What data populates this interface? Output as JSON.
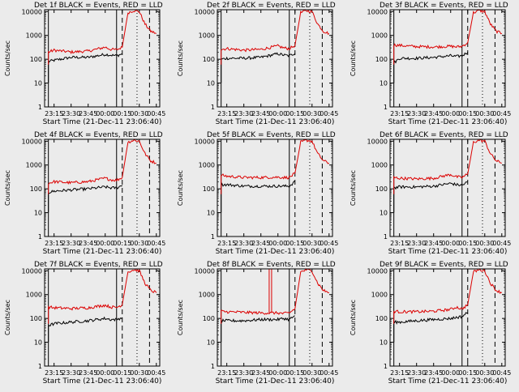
{
  "figure": {
    "background": "#ebebeb",
    "events_color": "#000000",
    "lld_color": "#dc0000",
    "panel_title_suffix": "BLACK = Events, RED = LLD",
    "ylabel": "Counts/sec",
    "xlabel": "Start Time (21-Dec-11 23:06:40)",
    "ytick_labels": [
      "1",
      "10",
      "100",
      "1000",
      "10000"
    ],
    "xtick_labels": [
      "23:15",
      "23:30",
      "23:45",
      "00:00",
      "00:15",
      "00:30",
      "00:45"
    ]
  },
  "chart_data": [
    {
      "type": "line",
      "title": "Det 1f BLACK = Events, RED = LLD",
      "detector": "1f",
      "xlabel": "Start Time (21-Dec-11 23:06:40)",
      "ylabel": "Counts/sec",
      "y_scale": "log",
      "ylim": [
        1,
        12000
      ],
      "xlim": [
        "23:06:40",
        "00:48:00"
      ],
      "x": [
        "23:10",
        "23:15",
        "23:30",
        "23:45",
        "00:00",
        "00:05",
        "00:10",
        "00:15",
        "00:20",
        "00:25",
        "00:30",
        "00:35",
        "00:40",
        "00:45"
      ],
      "series": [
        {
          "name": "Events",
          "values": [
            80,
            90,
            120,
            120,
            160,
            150,
            140,
            170,
            null,
            null,
            null,
            null,
            null,
            null
          ]
        },
        {
          "name": "LLD",
          "values": [
            200,
            240,
            200,
            220,
            320,
            260,
            250,
            320,
            9000,
            11000,
            10000,
            3000,
            1500,
            1200
          ]
        }
      ],
      "vlines": [
        {
          "x": "23:10",
          "style": "solid"
        },
        {
          "x": "00:10",
          "style": "solid"
        },
        {
          "x": "00:15",
          "style": "dashed"
        },
        {
          "x": "00:28",
          "style": "dotted"
        },
        {
          "x": "00:39",
          "style": "dashed"
        }
      ]
    },
    {
      "type": "line",
      "title": "Det 2f BLACK = Events, RED = LLD",
      "detector": "2f",
      "xlabel": "Start Time (21-Dec-11 23:06:40)",
      "ylabel": "Counts/sec",
      "y_scale": "log",
      "ylim": [
        1,
        12000
      ],
      "xlim": [
        "23:06:40",
        "00:48:00"
      ],
      "x": [
        "23:10",
        "23:15",
        "23:30",
        "23:45",
        "00:00",
        "00:05",
        "00:10",
        "00:15",
        "00:20",
        "00:25",
        "00:30",
        "00:35",
        "00:40",
        "00:45"
      ],
      "series": [
        {
          "name": "Events",
          "values": [
            100,
            110,
            110,
            120,
            170,
            150,
            140,
            180,
            null,
            null,
            null,
            null,
            null,
            null
          ]
        },
        {
          "name": "LLD",
          "values": [
            260,
            280,
            240,
            260,
            360,
            300,
            280,
            380,
            9000,
            11000,
            10000,
            3000,
            1500,
            1200
          ]
        }
      ],
      "vlines": [
        {
          "x": "23:10",
          "style": "solid"
        },
        {
          "x": "00:10",
          "style": "solid"
        },
        {
          "x": "00:15",
          "style": "dashed"
        },
        {
          "x": "00:28",
          "style": "dotted"
        },
        {
          "x": "00:39",
          "style": "dashed"
        }
      ]
    },
    {
      "type": "line",
      "title": "Det 3f BLACK = Events, RED = LLD",
      "detector": "3f",
      "xlabel": "Start Time (21-Dec-11 23:06:40)",
      "ylabel": "Counts/sec",
      "y_scale": "log",
      "ylim": [
        1,
        12000
      ],
      "xlim": [
        "23:06:40",
        "00:48:00"
      ],
      "x": [
        "23:10",
        "23:15",
        "23:30",
        "23:45",
        "00:00",
        "00:05",
        "00:10",
        "00:15",
        "00:20",
        "00:25",
        "00:30",
        "00:35",
        "00:40",
        "00:45"
      ],
      "series": [
        {
          "name": "Events",
          "values": [
            70,
            110,
            110,
            120,
            140,
            130,
            140,
            200,
            null,
            null,
            null,
            null,
            null,
            null
          ]
        },
        {
          "name": "LLD",
          "values": [
            400,
            380,
            340,
            330,
            350,
            330,
            350,
            500,
            9000,
            11000,
            10000,
            3000,
            1500,
            1200
          ]
        }
      ],
      "vlines": [
        {
          "x": "23:10",
          "style": "solid"
        },
        {
          "x": "00:10",
          "style": "solid"
        },
        {
          "x": "00:15",
          "style": "dashed"
        },
        {
          "x": "00:28",
          "style": "dotted"
        },
        {
          "x": "00:39",
          "style": "dashed"
        }
      ]
    },
    {
      "type": "line",
      "title": "Det 4f BLACK = Events, RED = LLD",
      "detector": "4f",
      "xlabel": "Start Time (21-Dec-11 23:06:40)",
      "ylabel": "Counts/sec",
      "y_scale": "log",
      "ylim": [
        1,
        12000
      ],
      "xlim": [
        "23:06:40",
        "00:48:00"
      ],
      "x": [
        "23:10",
        "23:15",
        "23:30",
        "23:45",
        "00:00",
        "00:05",
        "00:10",
        "00:15",
        "00:20",
        "00:25",
        "00:30",
        "00:35",
        "00:40",
        "00:45"
      ],
      "series": [
        {
          "name": "Events",
          "values": [
            70,
            80,
            90,
            100,
            120,
            110,
            110,
            140,
            null,
            null,
            null,
            null,
            null,
            null
          ]
        },
        {
          "name": "LLD",
          "values": [
            170,
            200,
            180,
            200,
            280,
            240,
            230,
            300,
            9000,
            11000,
            10000,
            3000,
            1500,
            1200
          ]
        }
      ],
      "vlines": [
        {
          "x": "23:10",
          "style": "solid"
        },
        {
          "x": "00:10",
          "style": "solid"
        },
        {
          "x": "00:15",
          "style": "dashed"
        },
        {
          "x": "00:28",
          "style": "dotted"
        },
        {
          "x": "00:39",
          "style": "dashed"
        }
      ]
    },
    {
      "type": "line",
      "title": "Det 5f BLACK = Events, RED = LLD",
      "detector": "5f",
      "xlabel": "Start Time (21-Dec-11 23:06:40)",
      "ylabel": "Counts/sec",
      "y_scale": "log",
      "ylim": [
        1,
        12000
      ],
      "xlim": [
        "23:06:40",
        "00:48:00"
      ],
      "x": [
        "23:10",
        "23:15",
        "23:30",
        "23:45",
        "00:00",
        "00:05",
        "00:10",
        "00:15",
        "00:20",
        "00:25",
        "00:30",
        "00:35",
        "00:40",
        "00:45"
      ],
      "series": [
        {
          "name": "Events",
          "values": [
            150,
            150,
            130,
            130,
            130,
            130,
            130,
            200,
            null,
            null,
            null,
            null,
            null,
            null
          ]
        },
        {
          "name": "LLD",
          "values": [
            380,
            340,
            300,
            300,
            310,
            300,
            300,
            450,
            9000,
            11000,
            10000,
            3000,
            1500,
            1200
          ]
        }
      ],
      "vlines": [
        {
          "x": "23:10",
          "style": "solid"
        },
        {
          "x": "00:10",
          "style": "solid"
        },
        {
          "x": "00:15",
          "style": "dashed"
        },
        {
          "x": "00:28",
          "style": "dotted"
        },
        {
          "x": "00:39",
          "style": "dashed"
        }
      ]
    },
    {
      "type": "line",
      "title": "Det 6f BLACK = Events, RED = LLD",
      "detector": "6f",
      "xlabel": "Start Time (21-Dec-11 23:06:40)",
      "ylabel": "Counts/sec",
      "y_scale": "log",
      "ylim": [
        1,
        12000
      ],
      "xlim": [
        "23:06:40",
        "00:48:00"
      ],
      "x": [
        "23:10",
        "23:15",
        "23:30",
        "23:45",
        "00:00",
        "00:05",
        "00:10",
        "00:15",
        "00:20",
        "00:25",
        "00:30",
        "00:35",
        "00:40",
        "00:45"
      ],
      "series": [
        {
          "name": "Events",
          "values": [
            110,
            120,
            120,
            130,
            170,
            150,
            140,
            200,
            null,
            null,
            null,
            null,
            null,
            null
          ]
        },
        {
          "name": "LLD",
          "values": [
            300,
            280,
            260,
            280,
            400,
            320,
            300,
            420,
            9000,
            11000,
            10000,
            3000,
            1500,
            1200
          ]
        }
      ],
      "vlines": [
        {
          "x": "23:10",
          "style": "solid"
        },
        {
          "x": "00:10",
          "style": "solid"
        },
        {
          "x": "00:15",
          "style": "dashed"
        },
        {
          "x": "00:28",
          "style": "dotted"
        },
        {
          "x": "00:39",
          "style": "dashed"
        }
      ]
    },
    {
      "type": "line",
      "title": "Det 7f BLACK = Events, RED = LLD",
      "detector": "7f",
      "xlabel": "Start Time (21-Dec-11 23:06:40)",
      "ylabel": "Counts/sec",
      "y_scale": "log",
      "ylim": [
        1,
        12000
      ],
      "xlim": [
        "23:06:40",
        "00:48:00"
      ],
      "x": [
        "23:10",
        "23:15",
        "23:30",
        "23:45",
        "00:00",
        "00:05",
        "00:10",
        "00:15",
        "00:20",
        "00:25",
        "00:30",
        "00:35",
        "00:40",
        "00:45"
      ],
      "series": [
        {
          "name": "Events",
          "values": [
            50,
            60,
            70,
            80,
            100,
            90,
            90,
            110,
            null,
            null,
            null,
            null,
            null,
            null
          ]
        },
        {
          "name": "LLD",
          "values": [
            300,
            280,
            260,
            280,
            360,
            300,
            290,
            380,
            9000,
            11000,
            10000,
            3000,
            1500,
            1200
          ]
        }
      ],
      "vlines": [
        {
          "x": "23:10",
          "style": "solid"
        },
        {
          "x": "00:10",
          "style": "solid"
        },
        {
          "x": "00:15",
          "style": "dashed"
        },
        {
          "x": "00:28",
          "style": "dotted"
        },
        {
          "x": "00:39",
          "style": "dashed"
        }
      ]
    },
    {
      "type": "line",
      "title": "Det 8f BLACK = Events, RED = LLD",
      "detector": "8f",
      "xlabel": "Start Time (21-Dec-11 23:06:40)",
      "ylabel": "Counts/sec",
      "y_scale": "log",
      "ylim": [
        1,
        12000
      ],
      "xlim": [
        "23:06:40",
        "00:48:00"
      ],
      "x": [
        "23:10",
        "23:15",
        "23:30",
        "23:45",
        "00:00",
        "00:05",
        "00:10",
        "00:15",
        "00:20",
        "00:25",
        "00:30",
        "00:35",
        "00:40",
        "00:45"
      ],
      "series": [
        {
          "name": "Events",
          "values": [
            80,
            80,
            80,
            90,
            90,
            100,
            90,
            130,
            null,
            null,
            null,
            null,
            null,
            null
          ]
        },
        {
          "name": "LLD",
          "values": [
            200,
            190,
            180,
            170,
            170,
            160,
            170,
            260,
            9000,
            11000,
            10000,
            3000,
            1500,
            1200
          ]
        }
      ],
      "spike": {
        "x": "23:53",
        "value": 12000
      },
      "vlines": [
        {
          "x": "23:10",
          "style": "solid"
        },
        {
          "x": "00:10",
          "style": "solid"
        },
        {
          "x": "00:15",
          "style": "dashed"
        },
        {
          "x": "00:28",
          "style": "dotted"
        },
        {
          "x": "00:39",
          "style": "dashed"
        }
      ]
    },
    {
      "type": "line",
      "title": "Det 9f BLACK = Events, RED = LLD",
      "detector": "9f",
      "xlabel": "Start Time (21-Dec-11 23:06:40)",
      "ylabel": "Counts/sec",
      "y_scale": "log",
      "ylim": [
        1,
        12000
      ],
      "xlim": [
        "23:06:40",
        "00:48:00"
      ],
      "x": [
        "23:10",
        "23:15",
        "23:30",
        "23:45",
        "00:00",
        "00:05",
        "00:10",
        "00:15",
        "00:20",
        "00:25",
        "00:30",
        "00:35",
        "00:40",
        "00:45"
      ],
      "series": [
        {
          "name": "Events",
          "values": [
            70,
            70,
            80,
            90,
            100,
            110,
            120,
            180,
            null,
            null,
            null,
            null,
            null,
            null
          ]
        },
        {
          "name": "LLD",
          "values": [
            200,
            190,
            190,
            200,
            240,
            300,
            250,
            380,
            9000,
            11000,
            10000,
            3000,
            1500,
            1200
          ]
        }
      ],
      "vlines": [
        {
          "x": "23:10",
          "style": "solid"
        },
        {
          "x": "00:10",
          "style": "solid"
        },
        {
          "x": "00:15",
          "style": "dashed"
        },
        {
          "x": "00:28",
          "style": "dotted"
        },
        {
          "x": "00:39",
          "style": "dashed"
        }
      ]
    }
  ]
}
